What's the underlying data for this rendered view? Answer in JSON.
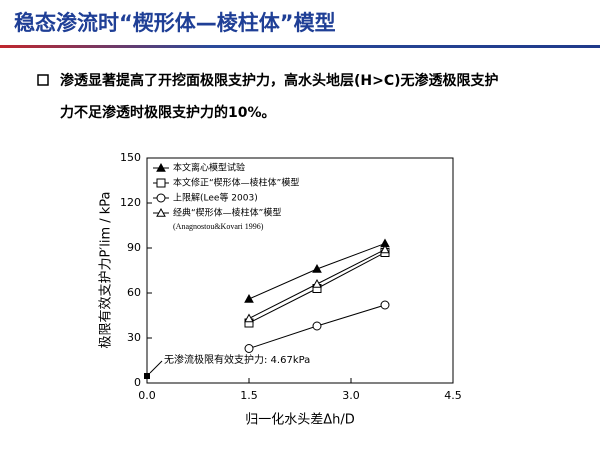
{
  "header": {
    "title": "稳态渗流时“楔形体—棱柱体”模型"
  },
  "bullet": {
    "lines": [
      "渗透显著提高了开挖面极限支护力，高水头地层(H>C)无渗透极限支护",
      "力不足渗透时极限支护力的10%。"
    ]
  },
  "chart_data": {
    "type": "line",
    "x_label": "归一化水头差Δh/D",
    "y_label": "极限有效支护力P′lim / kPa",
    "xlim": [
      0,
      4.5
    ],
    "xticks": [
      {
        "value": 0,
        "label": "0.0"
      },
      1.5,
      {
        "value": 3,
        "label": "3.0"
      },
      4.5
    ],
    "ylim": [
      0,
      150
    ],
    "yticks": [
      0,
      30,
      60,
      90,
      120,
      150
    ],
    "x": [
      1.5,
      2.5,
      3.5
    ],
    "series": [
      {
        "name": "本文离心模型试验",
        "color": "#000000",
        "marker": "triangle-filled",
        "values": [
          56,
          76,
          93
        ]
      },
      {
        "name": "本文修正“楔形体—棱柱体”模型",
        "color": "#000000",
        "marker": "square-open",
        "values": [
          40,
          63,
          87
        ]
      },
      {
        "name": "上限解(Lee等  2003)",
        "color": "#000000",
        "marker": "circle-open",
        "values": [
          23,
          38,
          52
        ]
      },
      {
        "name": "经典“楔形体—棱柱体”模型",
        "note": "(Anagnostou&Kovari 1996)",
        "color": "#000000",
        "marker": "triangle-open",
        "values": [
          43,
          66,
          89
        ]
      }
    ],
    "baseline_point": {
      "x": 0,
      "value": 4.67,
      "label": "无渗流极限有效支护力: 4.67kPa"
    }
  }
}
